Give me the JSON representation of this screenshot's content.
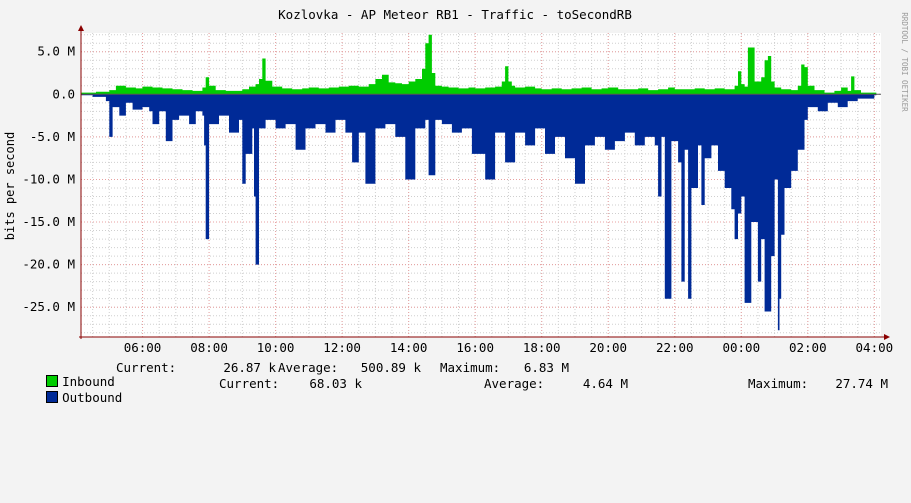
{
  "chart_data": {
    "type": "area",
    "title": "Kozlovka - AP Meteor RB1 - Traffic - toSecondRB",
    "ylabel": "bits per second",
    "watermark": "RRDTOOL / TOBI OETIKER",
    "y_ticks": [
      "5.0 M",
      "0.0",
      "-5.0 M",
      "-10.0 M",
      "-15.0 M",
      "-20.0 M",
      "-25.0 M"
    ],
    "y_tick_values": [
      5,
      0,
      -5,
      -10,
      -15,
      -20,
      -25
    ],
    "ylim": [
      -28.5,
      7.2
    ],
    "x_ticks": [
      "06:00",
      "08:00",
      "10:00",
      "12:00",
      "14:00",
      "16:00",
      "18:00",
      "20:00",
      "22:00",
      "00:00",
      "02:00",
      "04:00"
    ],
    "x_tick_hours": [
      6,
      8,
      10,
      12,
      14,
      16,
      18,
      20,
      22,
      24,
      26,
      28
    ],
    "xlim_hours": [
      4.15,
      28.2
    ],
    "grid": true,
    "colors": {
      "Inbound": "#00cc00",
      "Outbound": "#002a97",
      "grid_major": "#e8a0a0",
      "grid_minor": "#cfcfcf",
      "axis": "#8a0000",
      "canvas": "#ffffff",
      "background": "#f3f3f3"
    },
    "series": [
      {
        "name": "Inbound",
        "unit": "M",
        "hours": [
          4.15,
          4.6,
          5.0,
          5.2,
          5.5,
          5.8,
          6.0,
          6.3,
          6.6,
          6.9,
          7.2,
          7.5,
          7.8,
          7.9,
          8.0,
          8.2,
          8.5,
          8.8,
          9.0,
          9.2,
          9.4,
          9.5,
          9.6,
          9.7,
          9.9,
          10.2,
          10.5,
          10.8,
          11.0,
          11.3,
          11.6,
          11.9,
          12.2,
          12.5,
          12.8,
          13.0,
          13.2,
          13.4,
          13.6,
          13.8,
          14.0,
          14.2,
          14.4,
          14.5,
          14.6,
          14.7,
          14.8,
          15.0,
          15.2,
          15.5,
          15.8,
          16.0,
          16.3,
          16.6,
          16.8,
          16.9,
          17.0,
          17.1,
          17.2,
          17.5,
          17.8,
          18.0,
          18.3,
          18.6,
          18.9,
          19.2,
          19.5,
          19.8,
          20.0,
          20.3,
          20.6,
          20.9,
          21.2,
          21.5,
          21.8,
          22.0,
          22.3,
          22.6,
          22.9,
          23.2,
          23.5,
          23.8,
          23.9,
          24.0,
          24.1,
          24.2,
          24.4,
          24.6,
          24.7,
          24.8,
          24.9,
          25.0,
          25.2,
          25.5,
          25.7,
          25.8,
          25.9,
          26.0,
          26.2,
          26.5,
          26.8,
          27.0,
          27.2,
          27.3,
          27.4,
          27.6,
          28.0
        ],
        "values": [
          0.2,
          0.3,
          0.5,
          1.0,
          0.8,
          0.7,
          0.9,
          0.8,
          0.7,
          0.6,
          0.5,
          0.4,
          0.8,
          2.0,
          1.0,
          0.5,
          0.4,
          0.4,
          0.6,
          0.9,
          1.2,
          1.8,
          4.2,
          1.6,
          0.9,
          0.7,
          0.6,
          0.7,
          0.8,
          0.7,
          0.8,
          0.9,
          1.0,
          0.9,
          1.2,
          1.8,
          2.3,
          1.4,
          1.3,
          1.2,
          1.5,
          1.8,
          3.0,
          6.0,
          7.0,
          2.5,
          1.0,
          0.9,
          0.8,
          0.7,
          0.8,
          0.7,
          0.8,
          0.9,
          1.5,
          3.3,
          1.5,
          1.0,
          0.8,
          0.9,
          0.7,
          0.6,
          0.7,
          0.6,
          0.7,
          0.8,
          0.6,
          0.7,
          0.8,
          0.6,
          0.6,
          0.7,
          0.5,
          0.6,
          0.8,
          0.6,
          0.6,
          0.7,
          0.6,
          0.7,
          0.6,
          1.0,
          2.7,
          1.2,
          0.9,
          5.5,
          1.5,
          2.0,
          4.0,
          4.5,
          1.5,
          0.8,
          0.6,
          0.5,
          1.0,
          3.5,
          3.2,
          1.0,
          0.5,
          0.2,
          0.4,
          0.8,
          0.4,
          2.1,
          0.5,
          0.2,
          0.2
        ]
      },
      {
        "name": "Outbound",
        "unit": "M",
        "hours": [
          4.15,
          4.5,
          4.9,
          5.0,
          5.1,
          5.3,
          5.5,
          5.7,
          6.0,
          6.2,
          6.3,
          6.5,
          6.7,
          6.9,
          7.1,
          7.4,
          7.6,
          7.8,
          7.85,
          7.9,
          8.0,
          8.3,
          8.6,
          8.9,
          9.0,
          9.1,
          9.3,
          9.35,
          9.4,
          9.5,
          9.7,
          10.0,
          10.3,
          10.6,
          10.9,
          11.2,
          11.5,
          11.8,
          12.1,
          12.3,
          12.5,
          12.7,
          13.0,
          13.3,
          13.6,
          13.9,
          14.2,
          14.5,
          14.6,
          14.8,
          15.0,
          15.3,
          15.6,
          15.9,
          16.1,
          16.3,
          16.6,
          16.9,
          17.2,
          17.5,
          17.8,
          18.1,
          18.4,
          18.7,
          19.0,
          19.3,
          19.6,
          19.9,
          20.2,
          20.5,
          20.8,
          21.1,
          21.4,
          21.5,
          21.6,
          21.7,
          21.9,
          22.1,
          22.2,
          22.3,
          22.4,
          22.5,
          22.7,
          22.8,
          22.9,
          23.1,
          23.3,
          23.5,
          23.7,
          23.8,
          23.9,
          24.0,
          24.1,
          24.3,
          24.5,
          24.6,
          24.7,
          24.9,
          25.0,
          25.1,
          25.15,
          25.2,
          25.3,
          25.5,
          25.7,
          25.9,
          26.0,
          26.3,
          26.6,
          26.9,
          27.2,
          27.5,
          28.0
        ],
        "values": [
          -0.1,
          -0.3,
          -0.8,
          -5.0,
          -1.5,
          -2.5,
          -1.0,
          -1.8,
          -1.5,
          -2.0,
          -3.5,
          -2.0,
          -5.5,
          -3.0,
          -2.5,
          -3.5,
          -2.0,
          -2.5,
          -6.0,
          -17.0,
          -3.5,
          -2.5,
          -4.5,
          -3.0,
          -10.5,
          -7.0,
          -4.0,
          -12.0,
          -20.0,
          -4.0,
          -3.0,
          -4.0,
          -3.5,
          -6.5,
          -4.0,
          -3.5,
          -4.5,
          -3.0,
          -4.5,
          -8.0,
          -4.5,
          -10.5,
          -4.0,
          -3.5,
          -5.0,
          -10.0,
          -4.0,
          -3.0,
          -9.5,
          -3.0,
          -3.5,
          -4.5,
          -4.0,
          -7.0,
          -7.0,
          -10.0,
          -4.5,
          -8.0,
          -4.5,
          -6.0,
          -4.0,
          -7.0,
          -5.0,
          -7.5,
          -10.5,
          -6.0,
          -5.0,
          -6.5,
          -5.5,
          -4.5,
          -6.0,
          -5.0,
          -6.0,
          -12.0,
          -5.0,
          -24.0,
          -5.5,
          -8.0,
          -22.0,
          -6.5,
          -24.0,
          -11.0,
          -6.0,
          -13.0,
          -7.5,
          -6.0,
          -9.0,
          -11.0,
          -13.5,
          -17.0,
          -14.0,
          -12.0,
          -24.5,
          -15.0,
          -22.0,
          -17.0,
          -25.5,
          -19.0,
          -10.0,
          -27.7,
          -24.0,
          -16.5,
          -11.0,
          -9.0,
          -6.5,
          -3.0,
          -1.5,
          -2.0,
          -1.0,
          -1.5,
          -0.8,
          -0.5,
          -0.1
        ]
      }
    ],
    "legend": [
      {
        "name": "Inbound",
        "current": "26.87 k",
        "average": "500.89 k",
        "maximum": "6.83 M"
      },
      {
        "name": "Outbound",
        "current": "68.03 k",
        "average": "4.64 M",
        "maximum": "27.74 M"
      }
    ],
    "legend_labels": {
      "current": "Current:",
      "average": "Average:",
      "maximum": "Maximum:"
    }
  }
}
